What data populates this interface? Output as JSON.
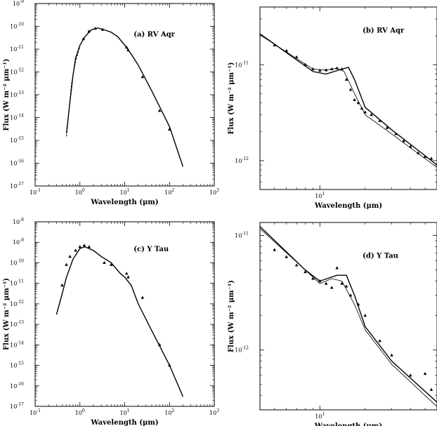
{
  "chart_data": [
    {
      "type": "line",
      "panel_label": "(a) RV Aqr",
      "xlabel": "Wavelength (μm)",
      "ylabel": "Flux (W m⁻² μm⁻¹)",
      "xscale": "log",
      "yscale": "log",
      "xlim": [
        0.1,
        1000
      ],
      "ylim": [
        1e-17,
        1e-09
      ],
      "xticks": [
        {
          "v": 0.1,
          "e": "-1"
        },
        {
          "v": 1,
          "e": "0"
        },
        {
          "v": 10,
          "e": "1"
        },
        {
          "v": 100,
          "e": "2"
        },
        {
          "v": 1000,
          "e": "3"
        }
      ],
      "yticks": [
        {
          "v": 1e-17,
          "e": "-17"
        },
        {
          "v": 1e-16,
          "e": "-16"
        },
        {
          "v": 1e-15,
          "e": "-15"
        },
        {
          "v": 1e-14,
          "e": "-14"
        },
        {
          "v": 1e-13,
          "e": "-13"
        },
        {
          "v": 1e-12,
          "e": "-12"
        },
        {
          "v": 1e-11,
          "e": "-11"
        },
        {
          "v": 1e-10,
          "e": "-10"
        },
        {
          "v": 1e-09,
          "e": "-9"
        }
      ],
      "series": [
        {
          "style": "solid",
          "points": [
            [
              0.5,
              2e-15
            ],
            [
              0.6,
              5e-14
            ],
            [
              0.7,
              7e-13
            ],
            [
              0.8,
              4e-12
            ],
            [
              1.0,
              1.5e-11
            ],
            [
              1.3,
              3.5e-11
            ],
            [
              1.8,
              7e-11
            ],
            [
              2.5,
              8.5e-11
            ],
            [
              3.5,
              7e-11
            ],
            [
              5,
              5.5e-11
            ],
            [
              7,
              3.5e-11
            ],
            [
              10,
              1.5e-11
            ],
            [
              14,
              6e-12
            ],
            [
              20,
              2e-12
            ],
            [
              40,
              1.5e-13
            ],
            [
              100,
              4e-15
            ],
            [
              200,
              7e-17
            ]
          ]
        },
        {
          "style": "dashed",
          "points": [
            [
              0.5,
              1.5e-15
            ],
            [
              0.65,
              3e-13
            ],
            [
              0.8,
              3e-12
            ],
            [
              1.0,
              1.3e-11
            ]
          ]
        }
      ],
      "markers": [
        [
          1.2,
          2.8e-11
        ],
        [
          1.6,
          6e-11
        ],
        [
          2.2,
          8e-11
        ],
        [
          3.2,
          7.2e-11
        ],
        [
          11,
          1.2e-11
        ],
        [
          12,
          9e-12
        ],
        [
          25,
          6e-13
        ],
        [
          60,
          2e-14
        ],
        [
          100,
          3e-15
        ]
      ]
    },
    {
      "type": "line",
      "panel_label": "(b) RV Aqr",
      "xlabel": "Wavelength (μm)",
      "ylabel": "Flux (W m⁻² μm⁻¹)",
      "xscale": "log",
      "yscale": "log",
      "xlim": [
        4,
        60
      ],
      "ylim": [
        5e-13,
        4e-11
      ],
      "xticks": [
        {
          "v": 10,
          "e": "1"
        }
      ],
      "yticks": [
        {
          "v": 1e-12,
          "e": "-12"
        },
        {
          "v": 1e-11,
          "e": "-11"
        }
      ],
      "series": [
        {
          "style": "solid",
          "points": [
            [
              4,
              2.1e-11
            ],
            [
              9,
              8.5e-12
            ],
            [
              11,
              8e-12
            ],
            [
              14,
              9e-12
            ],
            [
              15.5,
              9.4e-12
            ],
            [
              17,
              7e-12
            ],
            [
              20,
              3.6e-12
            ],
            [
              30,
              2.1e-12
            ],
            [
              60,
              9e-13
            ]
          ]
        },
        {
          "style": "thin",
          "points": [
            [
              4,
              2.05e-11
            ],
            [
              9,
              9e-12
            ],
            [
              11,
              8.8e-12
            ],
            [
              13,
              9.2e-12
            ],
            [
              14.5,
              8.5e-12
            ],
            [
              17,
              5e-12
            ],
            [
              20,
              3e-12
            ],
            [
              30,
              1.9e-12
            ],
            [
              60,
              8.5e-13
            ]
          ]
        }
      ],
      "markers": [
        [
          5,
          1.6e-11
        ],
        [
          6,
          1.4e-11
        ],
        [
          7,
          1.2e-11
        ],
        [
          8,
          1e-11
        ],
        [
          9,
          9e-12
        ],
        [
          10,
          8.7e-12
        ],
        [
          11,
          8.8e-12
        ],
        [
          12,
          9e-12
        ],
        [
          13,
          9.2e-12
        ],
        [
          14,
          9e-12
        ],
        [
          15,
          7e-12
        ],
        [
          16,
          5.5e-12
        ],
        [
          17,
          4.3e-12
        ],
        [
          18,
          4e-12
        ],
        [
          19,
          3.5e-12
        ],
        [
          20,
          3.2e-12
        ],
        [
          22,
          3e-12
        ],
        [
          25,
          2.6e-12
        ],
        [
          28,
          2.2e-12
        ],
        [
          32,
          1.9e-12
        ],
        [
          36,
          1.6e-12
        ],
        [
          40,
          1.4e-12
        ],
        [
          45,
          1.2e-12
        ],
        [
          50,
          1.1e-12
        ],
        [
          55,
          1.05e-12
        ]
      ]
    },
    {
      "type": "line",
      "panel_label": "(c) Y Tau",
      "xlabel": "Wavelength (μm)",
      "ylabel": "Flux (W m⁻² μm⁻¹)",
      "xscale": "log",
      "yscale": "log",
      "xlim": [
        0.1,
        1000
      ],
      "ylim": [
        1e-17,
        1e-08
      ],
      "xticks": [
        {
          "v": 0.1,
          "e": "-1"
        },
        {
          "v": 1,
          "e": "0"
        },
        {
          "v": 10,
          "e": "1"
        },
        {
          "v": 100,
          "e": "2"
        },
        {
          "v": 1000,
          "e": "3"
        }
      ],
      "yticks": [
        {
          "v": 1e-17,
          "e": "-17"
        },
        {
          "v": 1e-16,
          "e": "-16"
        },
        {
          "v": 1e-15,
          "e": "-15"
        },
        {
          "v": 1e-14,
          "e": "-14"
        },
        {
          "v": 1e-13,
          "e": "-13"
        },
        {
          "v": 1e-12,
          "e": "-12"
        },
        {
          "v": 1e-11,
          "e": "-11"
        },
        {
          "v": 1e-10,
          "e": "-10"
        },
        {
          "v": 1e-09,
          "e": "-9"
        },
        {
          "v": 1e-08,
          "e": "-8"
        }
      ],
      "series": [
        {
          "style": "solid",
          "points": [
            [
              0.3,
              3e-13
            ],
            [
              0.4,
              3e-12
            ],
            [
              0.5,
              2e-11
            ],
            [
              0.7,
              1.5e-10
            ],
            [
              1.0,
              5e-10
            ],
            [
              1.3,
              6e-10
            ],
            [
              2,
              4e-10
            ],
            [
              3,
              2e-10
            ],
            [
              5,
              1e-10
            ],
            [
              8,
              3e-11
            ],
            [
              10,
              2e-11
            ],
            [
              14,
              8e-12
            ],
            [
              20,
              1e-12
            ],
            [
              40,
              5e-14
            ],
            [
              100,
              1e-15
            ],
            [
              200,
              3e-17
            ]
          ]
        }
      ],
      "markers": [
        [
          0.4,
          8e-12
        ],
        [
          0.5,
          8e-11
        ],
        [
          0.6,
          2e-10
        ],
        [
          0.8,
          4e-10
        ],
        [
          1.0,
          6e-10
        ],
        [
          1.25,
          7e-10
        ],
        [
          1.6,
          6e-10
        ],
        [
          3.5,
          1e-10
        ],
        [
          5,
          8e-11
        ],
        [
          11,
          3e-11
        ],
        [
          12,
          2e-11
        ],
        [
          25,
          2e-12
        ],
        [
          60,
          1e-14
        ],
        [
          100,
          1e-15
        ]
      ]
    },
    {
      "type": "line",
      "panel_label": "(d) Y Tau",
      "xlabel": "Wavelength (μm)",
      "ylabel": "Flux (W m⁻² μm⁻¹)",
      "xscale": "log",
      "yscale": "log",
      "xlim": [
        4,
        60
      ],
      "ylim": [
        3e-13,
        1.3e-11
      ],
      "xticks": [
        {
          "v": 10,
          "e": "1"
        }
      ],
      "yticks": [
        {
          "v": 1e-12,
          "e": "-12"
        },
        {
          "v": 1e-11,
          "e": "-11"
        }
      ],
      "series": [
        {
          "style": "solid",
          "points": [
            [
              4,
              1.2e-11
            ],
            [
              8,
              5e-12
            ],
            [
              10,
              4e-12
            ],
            [
              13,
              4.5e-12
            ],
            [
              15,
              4.5e-12
            ],
            [
              17,
              3e-12
            ],
            [
              20,
              1.6e-12
            ],
            [
              30,
              8e-13
            ],
            [
              60,
              3.5e-13
            ]
          ]
        },
        {
          "style": "thin",
          "points": [
            [
              4,
              1.15e-11
            ],
            [
              8,
              5e-12
            ],
            [
              10,
              3.8e-12
            ],
            [
              12,
              4.2e-12
            ],
            [
              14,
              4e-12
            ],
            [
              17,
              2.5e-12
            ],
            [
              20,
              1.5e-12
            ],
            [
              30,
              7.5e-13
            ],
            [
              60,
              3.2e-13
            ]
          ]
        }
      ],
      "markers": [
        [
          5,
          7.5e-12
        ],
        [
          6,
          6.5e-12
        ],
        [
          7,
          5.5e-12
        ],
        [
          8,
          4.8e-12
        ],
        [
          9,
          4.2e-12
        ],
        [
          10,
          4e-12
        ],
        [
          11,
          3.8e-12
        ],
        [
          12,
          3.5e-12
        ],
        [
          13,
          5.2e-12
        ],
        [
          14,
          3.8e-12
        ],
        [
          15,
          3.6e-12
        ],
        [
          16,
          3e-12
        ],
        [
          18,
          2.5e-12
        ],
        [
          20,
          2e-12
        ],
        [
          25,
          1.2e-12
        ],
        [
          30,
          9e-13
        ],
        [
          40,
          6e-13
        ],
        [
          50,
          6.2e-13
        ],
        [
          55,
          4.5e-13
        ]
      ]
    }
  ]
}
